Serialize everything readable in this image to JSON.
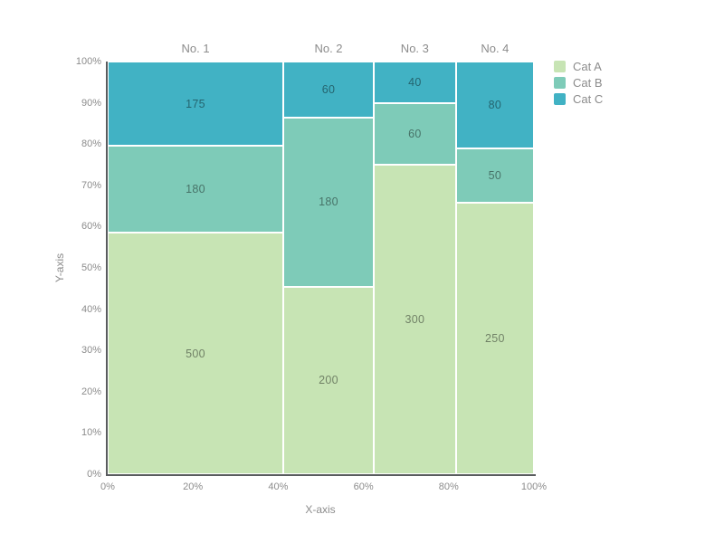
{
  "chart_data": {
    "type": "mosaic",
    "xlabel": "X-axis",
    "ylabel": "Y-axis",
    "columns": [
      "No. 1",
      "No. 2",
      "No. 3",
      "No. 4"
    ],
    "series": [
      {
        "name": "Cat A",
        "color": "#c7e4b4",
        "values": [
          500,
          200,
          300,
          250
        ]
      },
      {
        "name": "Cat B",
        "color": "#7ecbb8",
        "values": [
          180,
          180,
          60,
          50
        ]
      },
      {
        "name": "Cat C",
        "color": "#41b2c4",
        "values": [
          175,
          60,
          40,
          80
        ]
      }
    ],
    "column_totals": [
      855,
      440,
      400,
      380
    ],
    "x_ticks": [
      "0%",
      "20%",
      "40%",
      "60%",
      "80%",
      "100%"
    ],
    "y_ticks": [
      "0%",
      "10%",
      "20%",
      "30%",
      "40%",
      "50%",
      "60%",
      "70%",
      "80%",
      "90%",
      "100%"
    ],
    "x_range": [
      0,
      100
    ],
    "y_range": [
      0,
      100
    ],
    "grid": false,
    "legend_position": "top-right",
    "legend_items": [
      "Cat A",
      "Cat B",
      "Cat C"
    ]
  }
}
